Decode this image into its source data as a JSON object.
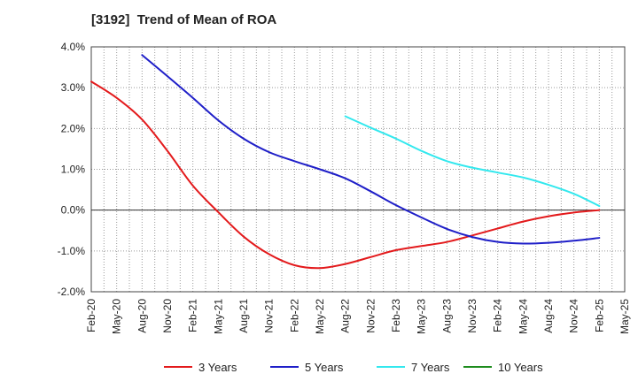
{
  "chart_data": {
    "type": "line",
    "title": "[3192]  Trend of Mean of ROA",
    "xlabel": "",
    "ylabel": "",
    "ylim": [
      -2.0,
      4.0
    ],
    "y_ticks": [
      -2.0,
      -1.0,
      0.0,
      1.0,
      2.0,
      3.0,
      4.0
    ],
    "y_tick_labels": [
      "-2.0%",
      "-1.0%",
      "0.0%",
      "1.0%",
      "2.0%",
      "3.0%",
      "4.0%"
    ],
    "categories": [
      "Feb-20",
      "May-20",
      "Aug-20",
      "Nov-20",
      "Feb-21",
      "May-21",
      "Aug-21",
      "Nov-21",
      "Feb-22",
      "May-22",
      "Aug-22",
      "Nov-22",
      "Feb-23",
      "May-23",
      "Aug-23",
      "Nov-23",
      "Feb-24",
      "May-24",
      "Aug-24",
      "Nov-24",
      "Feb-25",
      "May-25"
    ],
    "grid": true,
    "legend_position": "bottom",
    "series": [
      {
        "name": "3 Years",
        "color": "#e31a1c",
        "values": [
          3.15,
          2.75,
          2.22,
          1.45,
          0.6,
          -0.05,
          -0.65,
          -1.08,
          -1.35,
          -1.42,
          -1.32,
          -1.15,
          -0.98,
          -0.88,
          -0.78,
          -0.62,
          -0.45,
          -0.28,
          -0.15,
          -0.06,
          0.0,
          null
        ]
      },
      {
        "name": "5 Years",
        "color": "#1f1fc8",
        "values": [
          null,
          null,
          3.8,
          3.28,
          2.75,
          2.2,
          1.75,
          1.42,
          1.2,
          1.0,
          0.78,
          0.46,
          0.12,
          -0.18,
          -0.46,
          -0.66,
          -0.78,
          -0.82,
          -0.8,
          -0.75,
          -0.68,
          null
        ]
      },
      {
        "name": "7 Years",
        "color": "#33e8ee",
        "values": [
          null,
          null,
          null,
          null,
          null,
          null,
          null,
          null,
          null,
          null,
          2.3,
          2.02,
          1.75,
          1.45,
          1.2,
          1.04,
          0.92,
          0.8,
          0.62,
          0.4,
          0.1,
          null
        ]
      },
      {
        "name": "10 Years",
        "color": "#1e8c1e",
        "values": [
          null,
          null,
          null,
          null,
          null,
          null,
          null,
          null,
          null,
          null,
          null,
          null,
          null,
          null,
          null,
          null,
          null,
          null,
          null,
          null,
          null,
          null
        ]
      }
    ]
  }
}
